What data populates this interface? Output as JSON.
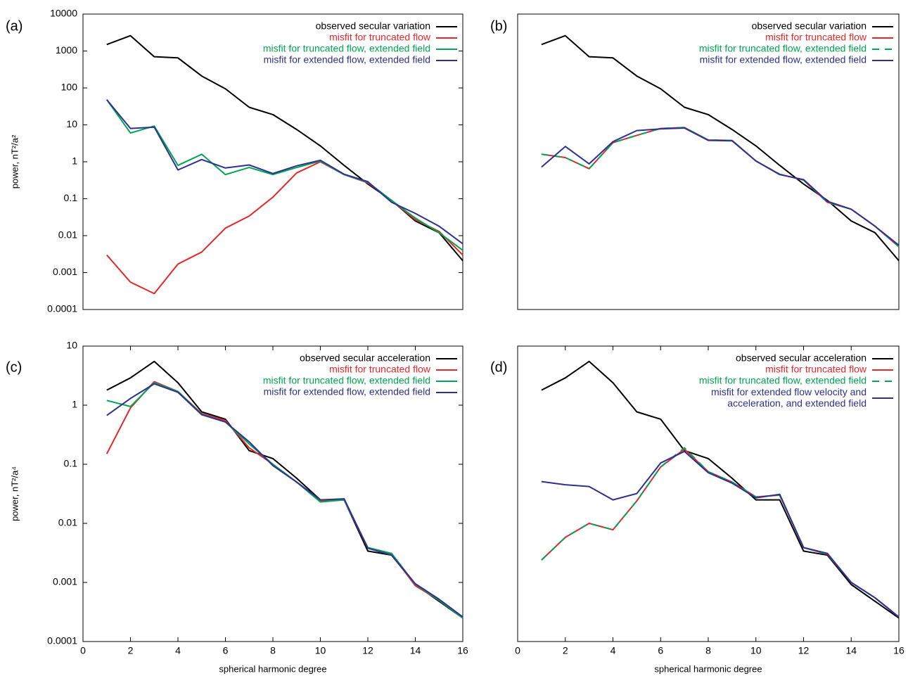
{
  "chart_data": [
    {
      "type": "line",
      "label": "(a)",
      "ylabel": "power, nT²/a²",
      "ylog": true,
      "xlim": [
        0,
        16
      ],
      "ylim": [
        0.0001,
        10000
      ],
      "yticks": [
        0.0001,
        0.001,
        0.01,
        0.1,
        1,
        10,
        100,
        1000,
        10000
      ],
      "x": [
        1,
        2,
        3,
        4,
        5,
        6,
        7,
        8,
        9,
        10,
        11,
        12,
        13,
        14,
        15,
        16
      ],
      "series": [
        {
          "name": "observed secular variation",
          "color": "#000000",
          "values": [
            1500,
            2600,
            700,
            650,
            210,
            95,
            30,
            19,
            7.5,
            2.7,
            0.8,
            0.25,
            0.09,
            0.025,
            0.012,
            0.0021
          ]
        },
        {
          "name": "misfit for truncated flow",
          "color": "#e8262a",
          "values": [
            0.003,
            0.00055,
            0.00027,
            0.0017,
            0.0036,
            0.016,
            0.034,
            0.11,
            0.5,
            1.0,
            0.45,
            0.27,
            0.09,
            0.027,
            0.013,
            0.003
          ]
        },
        {
          "name": "misfit for truncated flow, extended field",
          "color": "#00a651",
          "values": [
            48,
            6,
            9.3,
            0.8,
            1.6,
            0.45,
            0.7,
            0.45,
            0.7,
            1.05,
            0.45,
            0.28,
            0.09,
            0.03,
            0.012,
            0.004
          ]
        },
        {
          "name": "misfit for extended flow, extended field",
          "color": "#2e3192",
          "values": [
            48,
            8,
            8.7,
            0.6,
            1.15,
            0.68,
            0.82,
            0.48,
            0.78,
            1.1,
            0.46,
            0.29,
            0.08,
            0.04,
            0.018,
            0.006
          ]
        }
      ]
    },
    {
      "type": "line",
      "label": "(b)",
      "ylog": true,
      "xlim": [
        0,
        16
      ],
      "ylim": [
        0.0001,
        10000
      ],
      "x": [
        1,
        2,
        3,
        4,
        5,
        6,
        7,
        8,
        9,
        10,
        11,
        12,
        13,
        14,
        15,
        16
      ],
      "series": [
        {
          "name": "observed secular variation",
          "color": "#000000",
          "values": [
            1500,
            2600,
            700,
            650,
            210,
            95,
            30,
            19,
            7.5,
            2.7,
            0.8,
            0.25,
            0.09,
            0.025,
            0.012,
            0.0021
          ]
        },
        {
          "name": "misfit for truncated flow",
          "color": "#e8262a",
          "values": [
            1.6,
            1.3,
            0.65,
            3.3,
            5.2,
            8,
            8.5,
            3.9,
            3.8,
            1.05,
            0.46,
            0.32,
            0.08,
            0.052,
            0.018,
            0.005
          ]
        },
        {
          "name": "misfit for truncated flow, extended field",
          "color": "#00a651",
          "dashed": true,
          "values": [
            1.6,
            1.3,
            0.65,
            3.3,
            5.2,
            8,
            8.5,
            3.9,
            3.8,
            1.05,
            0.46,
            0.32,
            0.08,
            0.052,
            0.018,
            0.005
          ]
        },
        {
          "name": "misfit for extended flow, extended field",
          "color": "#2e3192",
          "values": [
            0.72,
            2.6,
            0.88,
            3.5,
            7,
            7.8,
            8.2,
            3.8,
            3.7,
            1.05,
            0.45,
            0.33,
            0.085,
            0.052,
            0.018,
            0.0055
          ]
        }
      ]
    },
    {
      "type": "line",
      "label": "(c)",
      "ylabel": "power, nT²/a⁴",
      "xlabel": "spherical harmonic degree",
      "ylog": true,
      "xlim": [
        0,
        16
      ],
      "ylim": [
        0.0001,
        10
      ],
      "xticks": [
        0,
        2,
        4,
        6,
        8,
        10,
        12,
        14,
        16
      ],
      "yticks": [
        0.0001,
        0.001,
        0.01,
        0.1,
        1,
        10
      ],
      "x": [
        1,
        2,
        3,
        4,
        5,
        6,
        7,
        8,
        9,
        10,
        11,
        12,
        13,
        14,
        15,
        16
      ],
      "series": [
        {
          "name": "observed secular acceleration",
          "color": "#000000",
          "values": [
            1.8,
            2.9,
            5.5,
            2.4,
            0.77,
            0.58,
            0.17,
            0.125,
            0.058,
            0.025,
            0.025,
            0.0034,
            0.0029,
            0.00092,
            0.00048,
            0.00025
          ]
        },
        {
          "name": "misfit for truncated flow",
          "color": "#e8262a",
          "values": [
            0.15,
            0.9,
            2.5,
            1.7,
            0.72,
            0.55,
            0.19,
            0.1,
            0.05,
            0.024,
            0.025,
            0.0038,
            0.003,
            0.00088,
            0.0005,
            0.00025
          ]
        },
        {
          "name": "misfit for truncated flow, extended field",
          "color": "#00a651",
          "values": [
            1.2,
            0.95,
            2.4,
            1.7,
            0.7,
            0.52,
            0.22,
            0.1,
            0.05,
            0.023,
            0.025,
            0.0039,
            0.0031,
            0.00093,
            0.0005,
            0.00025
          ]
        },
        {
          "name": "misfit for extended flow, extended field",
          "color": "#2e3192",
          "values": [
            0.67,
            1.3,
            2.3,
            1.65,
            0.69,
            0.52,
            0.24,
            0.095,
            0.05,
            0.025,
            0.026,
            0.0038,
            0.0029,
            0.00095,
            0.00052,
            0.00026
          ]
        }
      ]
    },
    {
      "type": "line",
      "label": "(d)",
      "xlabel": "spherical harmonic degree",
      "ylog": true,
      "xlim": [
        0,
        16
      ],
      "ylim": [
        0.0001,
        10
      ],
      "xticks": [
        0,
        2,
        4,
        6,
        8,
        10,
        12,
        14,
        16
      ],
      "x": [
        1,
        2,
        3,
        4,
        5,
        6,
        7,
        8,
        9,
        10,
        11,
        12,
        13,
        14,
        15,
        16
      ],
      "series": [
        {
          "name": "observed secular acceleration",
          "color": "#000000",
          "values": [
            1.8,
            2.9,
            5.5,
            2.4,
            0.77,
            0.58,
            0.17,
            0.125,
            0.058,
            0.025,
            0.025,
            0.0034,
            0.0029,
            0.00092,
            0.00048,
            0.00025
          ]
        },
        {
          "name": "misfit for truncated flow",
          "color": "#e8262a",
          "values": [
            0.0024,
            0.0058,
            0.01,
            0.0078,
            0.024,
            0.09,
            0.18,
            0.075,
            0.05,
            0.028,
            0.03,
            0.0039,
            0.003,
            0.001,
            0.00055,
            0.00026
          ]
        },
        {
          "name": "misfit for truncated flow, extended field",
          "color": "#00a651",
          "dashed": true,
          "values": [
            0.0024,
            0.0058,
            0.01,
            0.0078,
            0.024,
            0.09,
            0.19,
            0.075,
            0.05,
            0.028,
            0.03,
            0.0039,
            0.003,
            0.001,
            0.00055,
            0.00026
          ]
        },
        {
          "name": "misfit for extended flow velocity and\nacceleration, and extended field",
          "color": "#2e3192",
          "values": [
            0.051,
            0.045,
            0.042,
            0.025,
            0.032,
            0.105,
            0.165,
            0.072,
            0.048,
            0.027,
            0.031,
            0.0039,
            0.0031,
            0.001,
            0.00055,
            0.00026
          ]
        }
      ]
    }
  ]
}
